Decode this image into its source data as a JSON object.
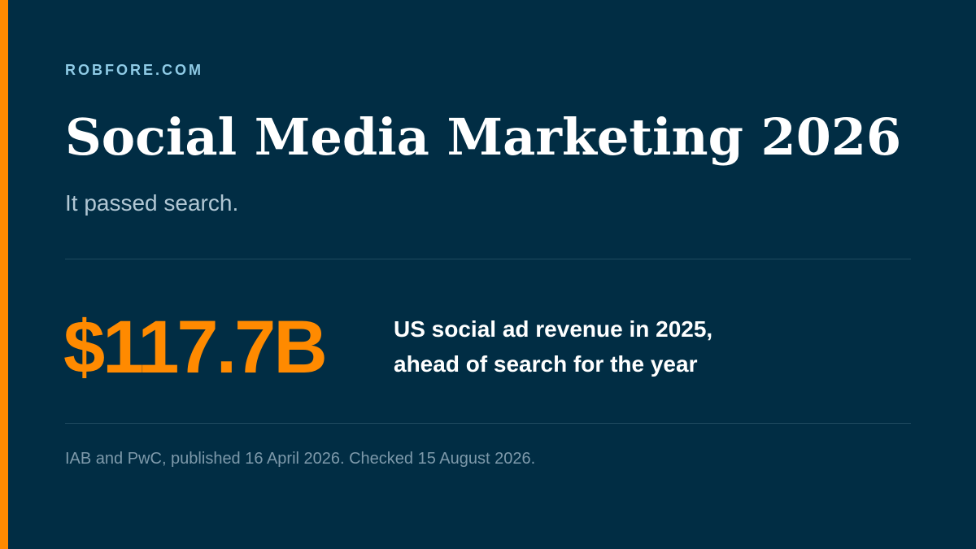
{
  "site": {
    "name": "ROBFORE.COM"
  },
  "headline": {
    "title": "Social Media Marketing 2026",
    "subtitle": "It passed search."
  },
  "stat": {
    "value": "$117.7B",
    "caption_lines": [
      "US social ad revenue in 2025,",
      "ahead of search for the year"
    ]
  },
  "source": {
    "text": "IAB and PwC, published 16 April 2026. Checked 15 August 2026."
  },
  "colors": {
    "background": "#012d44",
    "accent": "#ff8a00",
    "site_name": "#8fcbe6",
    "title": "#ffffff",
    "subtitle": "#b1c7d4",
    "source": "#7d99aa"
  }
}
